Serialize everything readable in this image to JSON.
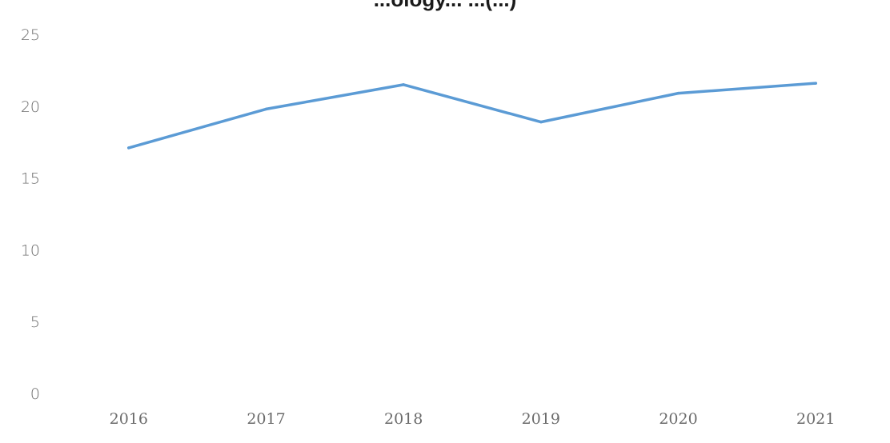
{
  "chart_data": {
    "type": "line",
    "title": "...ology... ...(...)",
    "categories": [
      "2016",
      "2017",
      "2018",
      "2019",
      "2020",
      "2021"
    ],
    "series": [
      {
        "values": [
          17.1,
          19.8,
          21.5,
          18.9,
          20.9,
          21.6
        ],
        "color": "#5b9bd5"
      }
    ],
    "ylim": [
      0,
      25
    ],
    "yticks": [
      "0",
      "5",
      "10",
      "15",
      "20",
      "25"
    ],
    "grid": false,
    "xlabel": "",
    "ylabel": ""
  }
}
